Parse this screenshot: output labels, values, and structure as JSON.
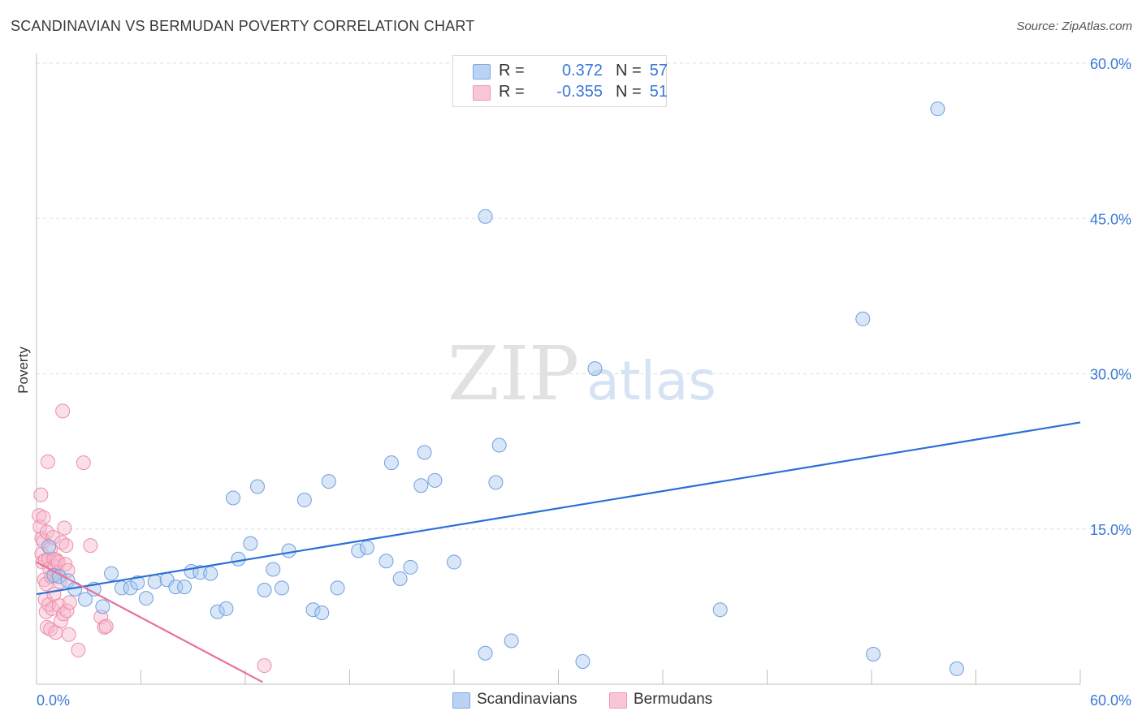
{
  "title": "SCANDINAVIAN VS BERMUDAN POVERTY CORRELATION CHART",
  "source": "Source: ZipAtlas.com",
  "watermark": {
    "zip": "ZIP",
    "atlas": "atlas"
  },
  "legend": {
    "scandinavians": {
      "r_label": "R =",
      "r_value": "0.372",
      "n_label": "N =",
      "n_value": "57"
    },
    "bermudans": {
      "r_label": "R =",
      "r_value": "-0.355",
      "n_label": "N =",
      "n_value": "51"
    }
  },
  "colors": {
    "blue_fill": "#a9c8f0",
    "blue_stroke": "#6f9fe0",
    "blue_line": "#2a6fd6",
    "pink_fill": "#f7b8cb",
    "pink_stroke": "#ee8eaa",
    "pink_line": "#e8709b",
    "axis_label": "#3b78d8",
    "grid": "#dedede"
  },
  "chart_data": {
    "type": "scatter",
    "title": "SCANDINAVIAN VS BERMUDAN POVERTY CORRELATION CHART",
    "xlabel": "",
    "ylabel": "Poverty",
    "xlim": [
      0,
      60
    ],
    "ylim": [
      0,
      60
    ],
    "x_tick_labels": [
      "0.0%",
      "60.0%"
    ],
    "y_ticks": [
      15,
      30,
      45,
      60
    ],
    "y_tick_labels": [
      "15.0%",
      "30.0%",
      "45.0%",
      "60.0%"
    ],
    "grid": "horizontal dashed",
    "series": [
      {
        "name": "Scandinavians",
        "color": "#a9c8f0",
        "points": [
          [
            0.7,
            13.3
          ],
          [
            1.0,
            10.5
          ],
          [
            1.3,
            10.4
          ],
          [
            1.8,
            10.0
          ],
          [
            2.2,
            9.2
          ],
          [
            2.8,
            8.2
          ],
          [
            3.3,
            9.2
          ],
          [
            3.8,
            7.5
          ],
          [
            4.3,
            10.7
          ],
          [
            4.9,
            9.3
          ],
          [
            5.4,
            9.3
          ],
          [
            5.8,
            9.8
          ],
          [
            6.3,
            8.3
          ],
          [
            6.8,
            9.9
          ],
          [
            7.5,
            10.1
          ],
          [
            8.0,
            9.4
          ],
          [
            8.5,
            9.4
          ],
          [
            8.9,
            10.9
          ],
          [
            9.4,
            10.8
          ],
          [
            10.0,
            10.7
          ],
          [
            10.4,
            7.0
          ],
          [
            10.9,
            7.3
          ],
          [
            11.3,
            18.0
          ],
          [
            11.6,
            12.1
          ],
          [
            12.3,
            13.6
          ],
          [
            12.7,
            19.1
          ],
          [
            13.1,
            9.1
          ],
          [
            13.6,
            11.1
          ],
          [
            14.1,
            9.3
          ],
          [
            14.5,
            12.9
          ],
          [
            15.4,
            17.8
          ],
          [
            15.9,
            7.2
          ],
          [
            16.4,
            6.9
          ],
          [
            16.8,
            19.6
          ],
          [
            17.3,
            9.3
          ],
          [
            18.5,
            12.9
          ],
          [
            19.0,
            13.2
          ],
          [
            20.1,
            11.9
          ],
          [
            20.4,
            21.4
          ],
          [
            20.9,
            10.2
          ],
          [
            21.5,
            11.3
          ],
          [
            22.1,
            19.2
          ],
          [
            22.3,
            22.4
          ],
          [
            22.9,
            19.7
          ],
          [
            24.0,
            11.8
          ],
          [
            25.8,
            45.2
          ],
          [
            25.8,
            3.0
          ],
          [
            26.4,
            19.5
          ],
          [
            26.6,
            23.1
          ],
          [
            27.3,
            4.2
          ],
          [
            31.4,
            2.2
          ],
          [
            32.1,
            30.5
          ],
          [
            39.3,
            7.2
          ],
          [
            47.5,
            35.3
          ],
          [
            48.1,
            2.9
          ],
          [
            51.8,
            55.6
          ],
          [
            52.9,
            1.5
          ]
        ],
        "trend": [
          [
            0.0,
            8.7
          ],
          [
            60.0,
            25.3
          ]
        ]
      },
      {
        "name": "Bermudans",
        "color": "#f7b8cb",
        "points": [
          [
            0.15,
            16.3
          ],
          [
            0.25,
            18.3
          ],
          [
            0.2,
            15.2
          ],
          [
            0.3,
            14.1
          ],
          [
            0.3,
            12.6
          ],
          [
            0.35,
            11.8
          ],
          [
            0.4,
            16.1
          ],
          [
            0.4,
            13.8
          ],
          [
            0.45,
            10.1
          ],
          [
            0.5,
            12.0
          ],
          [
            0.5,
            8.2
          ],
          [
            0.55,
            9.7
          ],
          [
            0.55,
            7.0
          ],
          [
            0.6,
            5.5
          ],
          [
            0.6,
            14.7
          ],
          [
            0.65,
            21.5
          ],
          [
            0.7,
            7.7
          ],
          [
            0.7,
            12.1
          ],
          [
            0.75,
            11.2
          ],
          [
            0.8,
            5.3
          ],
          [
            0.8,
            13.1
          ],
          [
            0.85,
            10.4
          ],
          [
            0.9,
            7.3
          ],
          [
            0.95,
            14.2
          ],
          [
            1.0,
            12.1
          ],
          [
            1.0,
            8.7
          ],
          [
            1.05,
            11.4
          ],
          [
            1.1,
            5.0
          ],
          [
            1.15,
            12.0
          ],
          [
            1.2,
            10.8
          ],
          [
            1.25,
            11.8
          ],
          [
            1.3,
            7.6
          ],
          [
            1.35,
            9.9
          ],
          [
            1.4,
            6.1
          ],
          [
            1.45,
            13.7
          ],
          [
            1.5,
            26.4
          ],
          [
            1.55,
            6.8
          ],
          [
            1.6,
            15.1
          ],
          [
            1.65,
            11.6
          ],
          [
            1.7,
            13.4
          ],
          [
            1.75,
            7.1
          ],
          [
            1.8,
            11.0
          ],
          [
            1.85,
            4.8
          ],
          [
            1.9,
            7.9
          ],
          [
            2.4,
            3.3
          ],
          [
            2.7,
            21.4
          ],
          [
            3.1,
            13.4
          ],
          [
            3.7,
            6.5
          ],
          [
            3.9,
            5.5
          ],
          [
            4.0,
            5.6
          ],
          [
            13.1,
            1.8
          ]
        ],
        "trend": [
          [
            0.0,
            11.8
          ],
          [
            13.0,
            0.2
          ]
        ]
      }
    ]
  },
  "bottom_legend": {
    "scandinavians": "Scandinavians",
    "bermudans": "Bermudans"
  }
}
